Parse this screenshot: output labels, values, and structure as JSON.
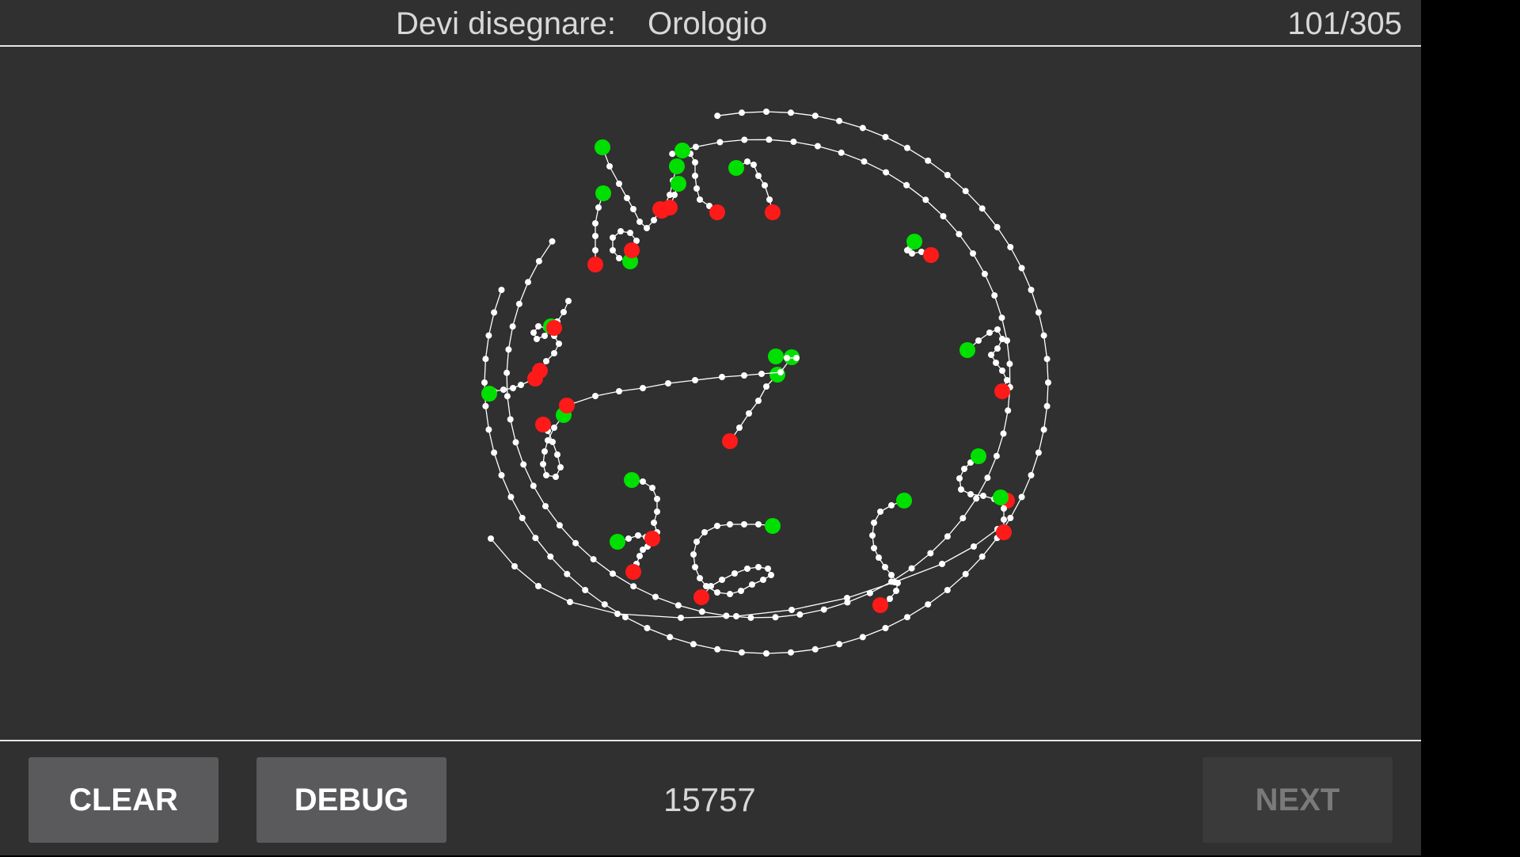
{
  "header": {
    "prompt_label": "Devi disegnare:",
    "prompt_word": "Orologio",
    "counter": "101/305"
  },
  "footer": {
    "clear_label": "CLEAR",
    "debug_label": "DEBUG",
    "score": "15757",
    "next_label": "NEXT"
  },
  "colors": {
    "background": "#303030",
    "stroke": "#ffffff",
    "stroke_start": "#00e000",
    "stroke_end": "#ff1a1a",
    "button_bg": "#5a5a5c",
    "button_disabled_bg": "#3a3a3a",
    "button_disabled_text": "#7a7a7a"
  }
}
